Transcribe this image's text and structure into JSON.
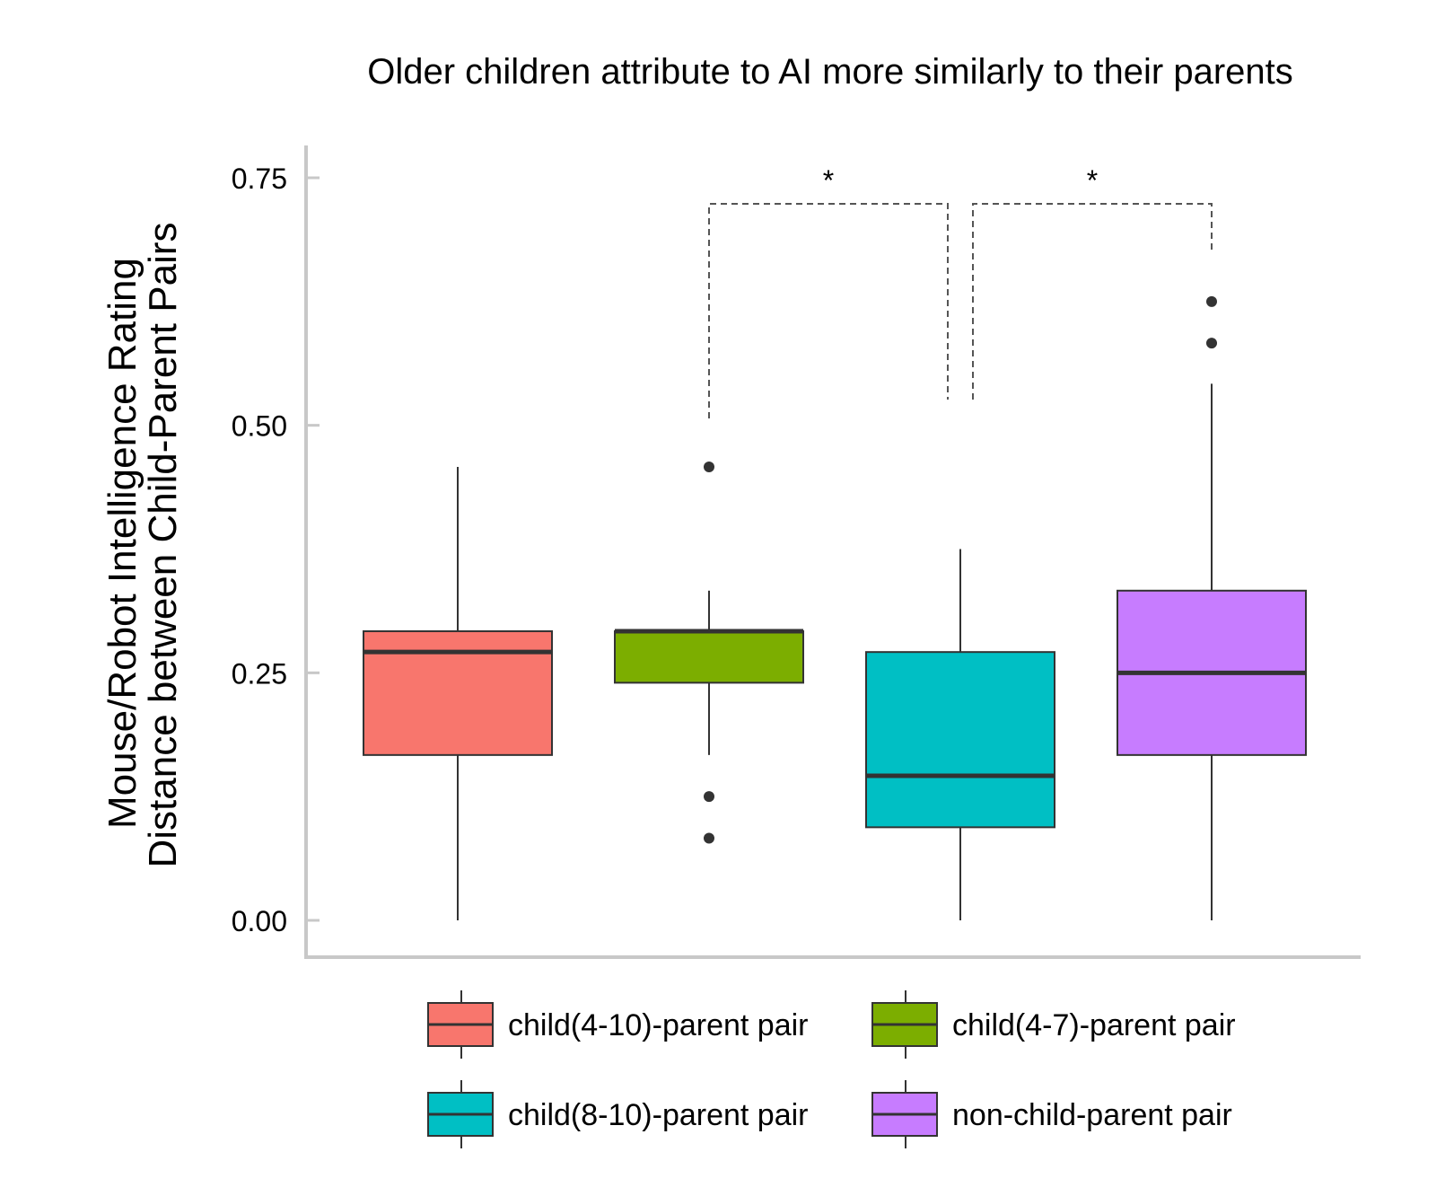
{
  "chart_data": {
    "type": "boxplot",
    "title": "Older children attribute to AI more similarly to their parents",
    "ylabel_lines": [
      "Mouse/Robot Intelligence Rating",
      "Distance between Child-Parent Pairs"
    ],
    "xlabel": "",
    "ylim": [
      0,
      0.75
    ],
    "yticks": [
      "0.00",
      "0.25",
      "0.50",
      "0.75"
    ],
    "ytick_values": [
      0,
      0.25,
      0.5,
      0.75
    ],
    "grid": false,
    "legend_position": "bottom",
    "series": [
      {
        "name": "child(4-10)-parent pair",
        "color": "#F8766D",
        "min": 0.0,
        "q1": 0.167,
        "median": 0.271,
        "q3": 0.292,
        "max": 0.458,
        "outliers": []
      },
      {
        "name": "child(4-7)-parent pair",
        "color": "#7CAE00",
        "min": 0.167,
        "q1": 0.24,
        "median": 0.292,
        "q3": 0.292,
        "max": 0.333,
        "outliers": [
          0.125,
          0.083,
          0.458
        ]
      },
      {
        "name": "child(8-10)-parent pair",
        "color": "#00BFC4",
        "min": 0.0,
        "q1": 0.094,
        "median": 0.146,
        "q3": 0.271,
        "max": 0.375,
        "outliers": []
      },
      {
        "name": "non-child-parent pair",
        "color": "#C77CFF",
        "min": 0.0,
        "q1": 0.167,
        "median": 0.25,
        "q3": 0.333,
        "max": 0.542,
        "outliers": [
          0.583,
          0.625
        ]
      }
    ],
    "annotations": [
      {
        "label": "*",
        "from": 1,
        "to": 2
      },
      {
        "label": "*",
        "from": 2,
        "to": 3
      }
    ]
  }
}
